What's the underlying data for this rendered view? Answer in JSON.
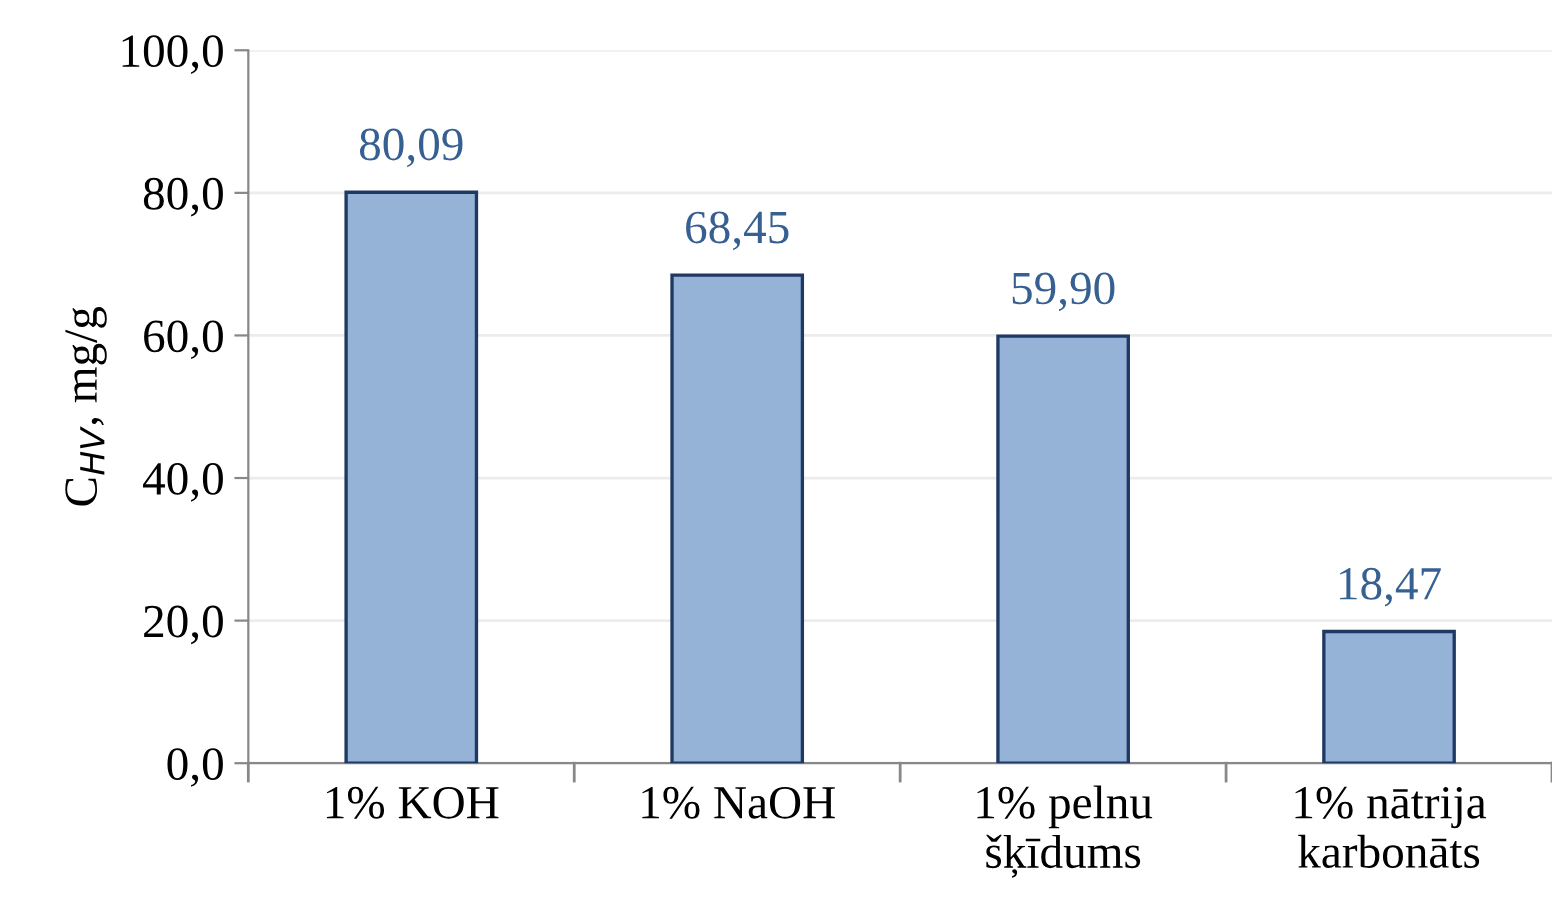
{
  "chart_data": {
    "type": "bar",
    "ylabel": "C$_{HV}$, mg/g",
    "categories": [
      "1% KOH",
      "1% NaOH",
      "1% pelnu\nšķīdums",
      "1% nātrija\nkarbonāts"
    ],
    "values": [
      80.09,
      68.45,
      59.9,
      18.47
    ],
    "color": "#95b3d7",
    "value_labels": [
      "80,09",
      "68,45",
      "59,90",
      "18,47"
    ],
    "ylim": [
      0,
      100
    ],
    "yticks": [
      {
        "value": 0,
        "label": "0,0"
      },
      {
        "value": 20,
        "label": "20,0"
      },
      {
        "value": 40,
        "label": "40,0"
      },
      {
        "value": 60,
        "label": "60,0"
      },
      {
        "value": 80,
        "label": "80,0"
      },
      {
        "value": 100,
        "label": "100,0"
      }
    ],
    "grid": "y"
  }
}
